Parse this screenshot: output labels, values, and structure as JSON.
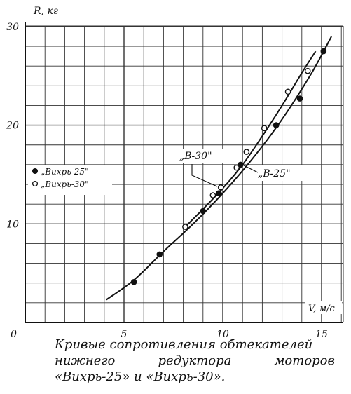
{
  "chart_data": {
    "type": "line",
    "title": "",
    "ylabel": "R, кг",
    "xlabel": "V, м/с",
    "xlim": [
      0,
      16
    ],
    "ylim": [
      0,
      30
    ],
    "x_ticks": [
      "5",
      "10",
      "15"
    ],
    "y_ticks": [
      "10",
      "20",
      "30"
    ],
    "origin_label": "0",
    "grid": true,
    "legend": [
      {
        "marker": "filled-circle",
        "label": "„Вихрь-25\""
      },
      {
        "marker": "open-circle",
        "label": "„Вихрь-30\""
      }
    ],
    "legend_position": "left-middle",
    "series": [
      {
        "name": "„Вихрь-25\"",
        "marker": "filled-circle",
        "points": [
          [
            5.5,
            4.1
          ],
          [
            6.8,
            6.9
          ],
          [
            9.0,
            11.3
          ],
          [
            9.8,
            13.1
          ],
          [
            10.9,
            16.0
          ],
          [
            12.7,
            20.0
          ],
          [
            13.9,
            22.7
          ],
          [
            15.1,
            27.5
          ]
        ]
      },
      {
        "name": "„Вихрь-30\"",
        "marker": "open-circle",
        "points": [
          [
            8.1,
            9.7
          ],
          [
            9.5,
            12.9
          ],
          [
            9.9,
            13.7
          ],
          [
            10.7,
            15.7
          ],
          [
            11.2,
            17.3
          ],
          [
            12.1,
            19.7
          ],
          [
            13.3,
            23.4
          ],
          [
            14.3,
            25.5
          ]
        ]
      }
    ],
    "curves": [
      {
        "label": "„В-25\"",
        "x": [
          4.1,
          5.5,
          7.0,
          8.5,
          10.0,
          11.5,
          13.0,
          14.5,
          15.5
        ],
        "y": [
          2.3,
          4.3,
          7.2,
          10.0,
          13.1,
          16.6,
          20.6,
          25.3,
          29.0
        ]
      },
      {
        "label": "„В-30\"",
        "x": [
          8.0,
          9.0,
          10.0,
          11.0,
          12.0,
          13.0,
          14.0,
          14.7
        ],
        "y": [
          9.5,
          11.5,
          13.6,
          16.0,
          18.9,
          22.0,
          25.3,
          27.5
        ]
      }
    ],
    "annotations": [
      "„В-30\"",
      "„В-25\""
    ]
  },
  "caption": {
    "line1": "Кривые сопротивления обтекателей",
    "line2_words": [
      "нижнего",
      "редуктора",
      "моторов"
    ],
    "line3": "«Вихрь-25» и «Вихрь-30»."
  },
  "colors": {
    "ink": "#111111",
    "grid": "#333333",
    "paper": "#ffffff"
  }
}
